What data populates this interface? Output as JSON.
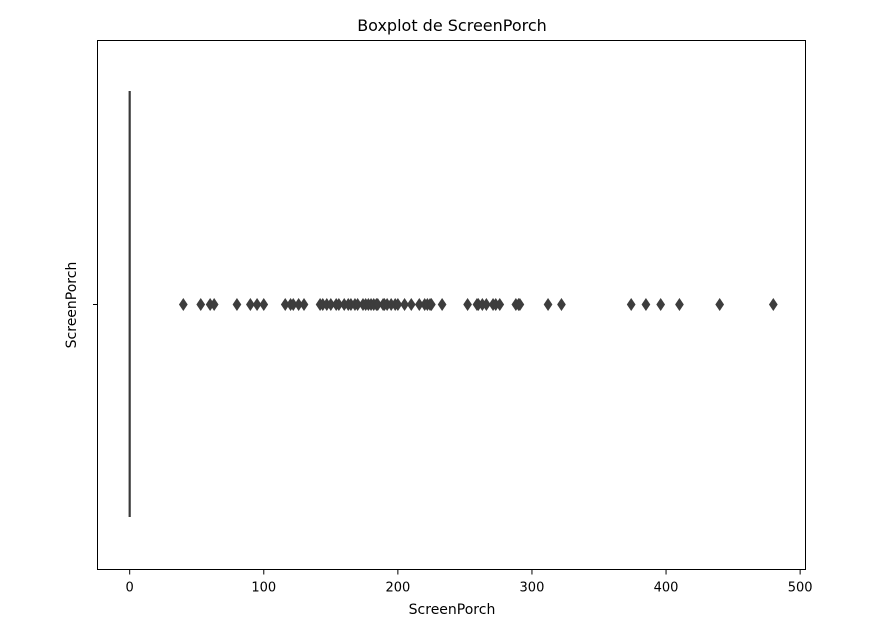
{
  "chart_data": {
    "type": "boxplot",
    "orientation": "horizontal",
    "title": "Boxplot de ScreenPorch",
    "xlabel": "ScreenPorch",
    "ylabel": "ScreenPorch",
    "xlim": [
      -24,
      504
    ],
    "x_ticks": [
      0,
      100,
      200,
      300,
      400,
      500
    ],
    "grid": false,
    "box": {
      "min": 0,
      "q1": 0,
      "median": 0,
      "q3": 0,
      "max": 0
    },
    "outliers": [
      40,
      53,
      60,
      63,
      80,
      90,
      95,
      100,
      116,
      120,
      122,
      126,
      130,
      142,
      144,
      147,
      150,
      154,
      156,
      160,
      163,
      165,
      168,
      170,
      174,
      176,
      178,
      180,
      182,
      184,
      185,
      189,
      190,
      192,
      195,
      198,
      200,
      205,
      210,
      216,
      220,
      222,
      224,
      225,
      233,
      252,
      259,
      260,
      263,
      266,
      271,
      273,
      276,
      288,
      290,
      291,
      312,
      322,
      374,
      385,
      396,
      410,
      440,
      480
    ],
    "colors": {
      "box": "#3a3a3a",
      "outlier": "#3d3d3d",
      "frame": "#000000"
    }
  }
}
